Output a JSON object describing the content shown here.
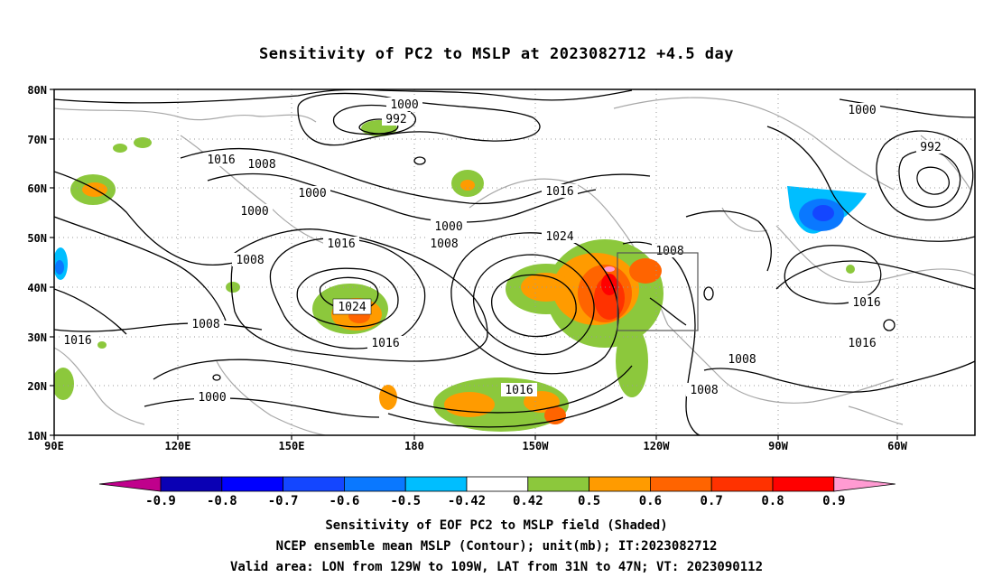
{
  "title": "Sensitivity of PC2 to MSLP at 2023082712 +4.5 day",
  "axes": {
    "lat_labels": [
      "80N",
      "70N",
      "60N",
      "50N",
      "40N",
      "30N",
      "20N",
      "10N"
    ],
    "lon_labels": [
      "90E",
      "120E",
      "150E",
      "180",
      "150W",
      "120W",
      "90W",
      "60W"
    ]
  },
  "contour_labels": [
    "1000",
    "992",
    "1000",
    "1016",
    "1008",
    "1000",
    "1000",
    "1016",
    "1000",
    "1008",
    "1008",
    "1016",
    "1024",
    "1008",
    "1024",
    "1016",
    "1016",
    "1008",
    "1000",
    "1016",
    "1008",
    "1008",
    "1016",
    "992",
    "1016",
    "1000"
  ],
  "colorbar": {
    "labels": [
      "-0.9",
      "-0.8",
      "-0.7",
      "-0.6",
      "-0.5",
      "-0.42",
      "0.42",
      "0.5",
      "0.6",
      "0.7",
      "0.8",
      "0.9"
    ],
    "colors": [
      "#0a00b4",
      "#0000ff",
      "#1446ff",
      "#0a78ff",
      "#00beff",
      "#ffffff",
      "#8cc83c",
      "#ff9b00",
      "#ff6400",
      "#ff3200",
      "#ff0000"
    ],
    "low_extend_color": "#c0008c",
    "high_extend_color": "#ff9bd2"
  },
  "captions": {
    "line1": "Sensitivity of EOF PC2 to MSLP field (Shaded)",
    "line2": "NCEP ensemble mean MSLP (Contour); unit(mb); IT:2023082712",
    "line3": "Valid area: LON from 129W to 109W, LAT from 31N to 47N; VT: 2023090112"
  },
  "valid_area_box": {
    "lon_min": "129W",
    "lon_max": "109W",
    "lat_min": "31N",
    "lat_max": "47N"
  }
}
